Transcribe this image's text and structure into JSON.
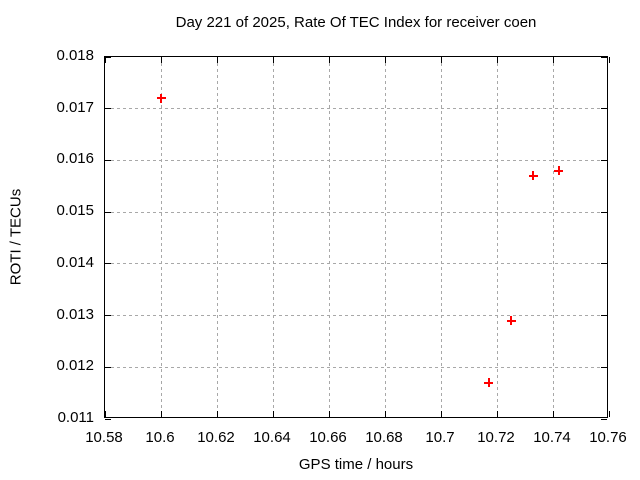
{
  "chart_data": {
    "type": "scatter",
    "title": "Day 221 of 2025, Rate Of TEC Index for receiver coen",
    "xlabel": "GPS time / hours",
    "ylabel": "ROTI / TECUs",
    "xlim": [
      10.58,
      10.76
    ],
    "ylim": [
      0.011,
      0.018
    ],
    "grid": true,
    "legend": "none",
    "xticks": [
      {
        "value": 10.58,
        "label": "10.58"
      },
      {
        "value": 10.6,
        "label": "10.6"
      },
      {
        "value": 10.62,
        "label": "10.62"
      },
      {
        "value": 10.64,
        "label": "10.64"
      },
      {
        "value": 10.66,
        "label": "10.66"
      },
      {
        "value": 10.68,
        "label": "10.68"
      },
      {
        "value": 10.7,
        "label": "10.7"
      },
      {
        "value": 10.72,
        "label": "10.72"
      },
      {
        "value": 10.74,
        "label": "10.74"
      },
      {
        "value": 10.76,
        "label": "10.76"
      }
    ],
    "yticks": [
      {
        "value": 0.011,
        "label": "0.011"
      },
      {
        "value": 0.012,
        "label": "0.012"
      },
      {
        "value": 0.013,
        "label": "0.013"
      },
      {
        "value": 0.014,
        "label": "0.014"
      },
      {
        "value": 0.015,
        "label": "0.015"
      },
      {
        "value": 0.016,
        "label": "0.016"
      },
      {
        "value": 0.017,
        "label": "0.017"
      },
      {
        "value": 0.018,
        "label": "0.018"
      }
    ],
    "series": [
      {
        "name": "ROTI",
        "marker": "plus",
        "color": "#ff0000",
        "points": [
          {
            "x": 10.6,
            "y": 0.0172
          },
          {
            "x": 10.717,
            "y": 0.0117
          },
          {
            "x": 10.725,
            "y": 0.0129
          },
          {
            "x": 10.733,
            "y": 0.0157
          },
          {
            "x": 10.742,
            "y": 0.0158
          }
        ]
      }
    ]
  },
  "colors": {
    "background": "#ffffff",
    "text": "#000000",
    "axis": "#000000",
    "grid": "#a8a8a8",
    "marker": "#ff0000"
  }
}
